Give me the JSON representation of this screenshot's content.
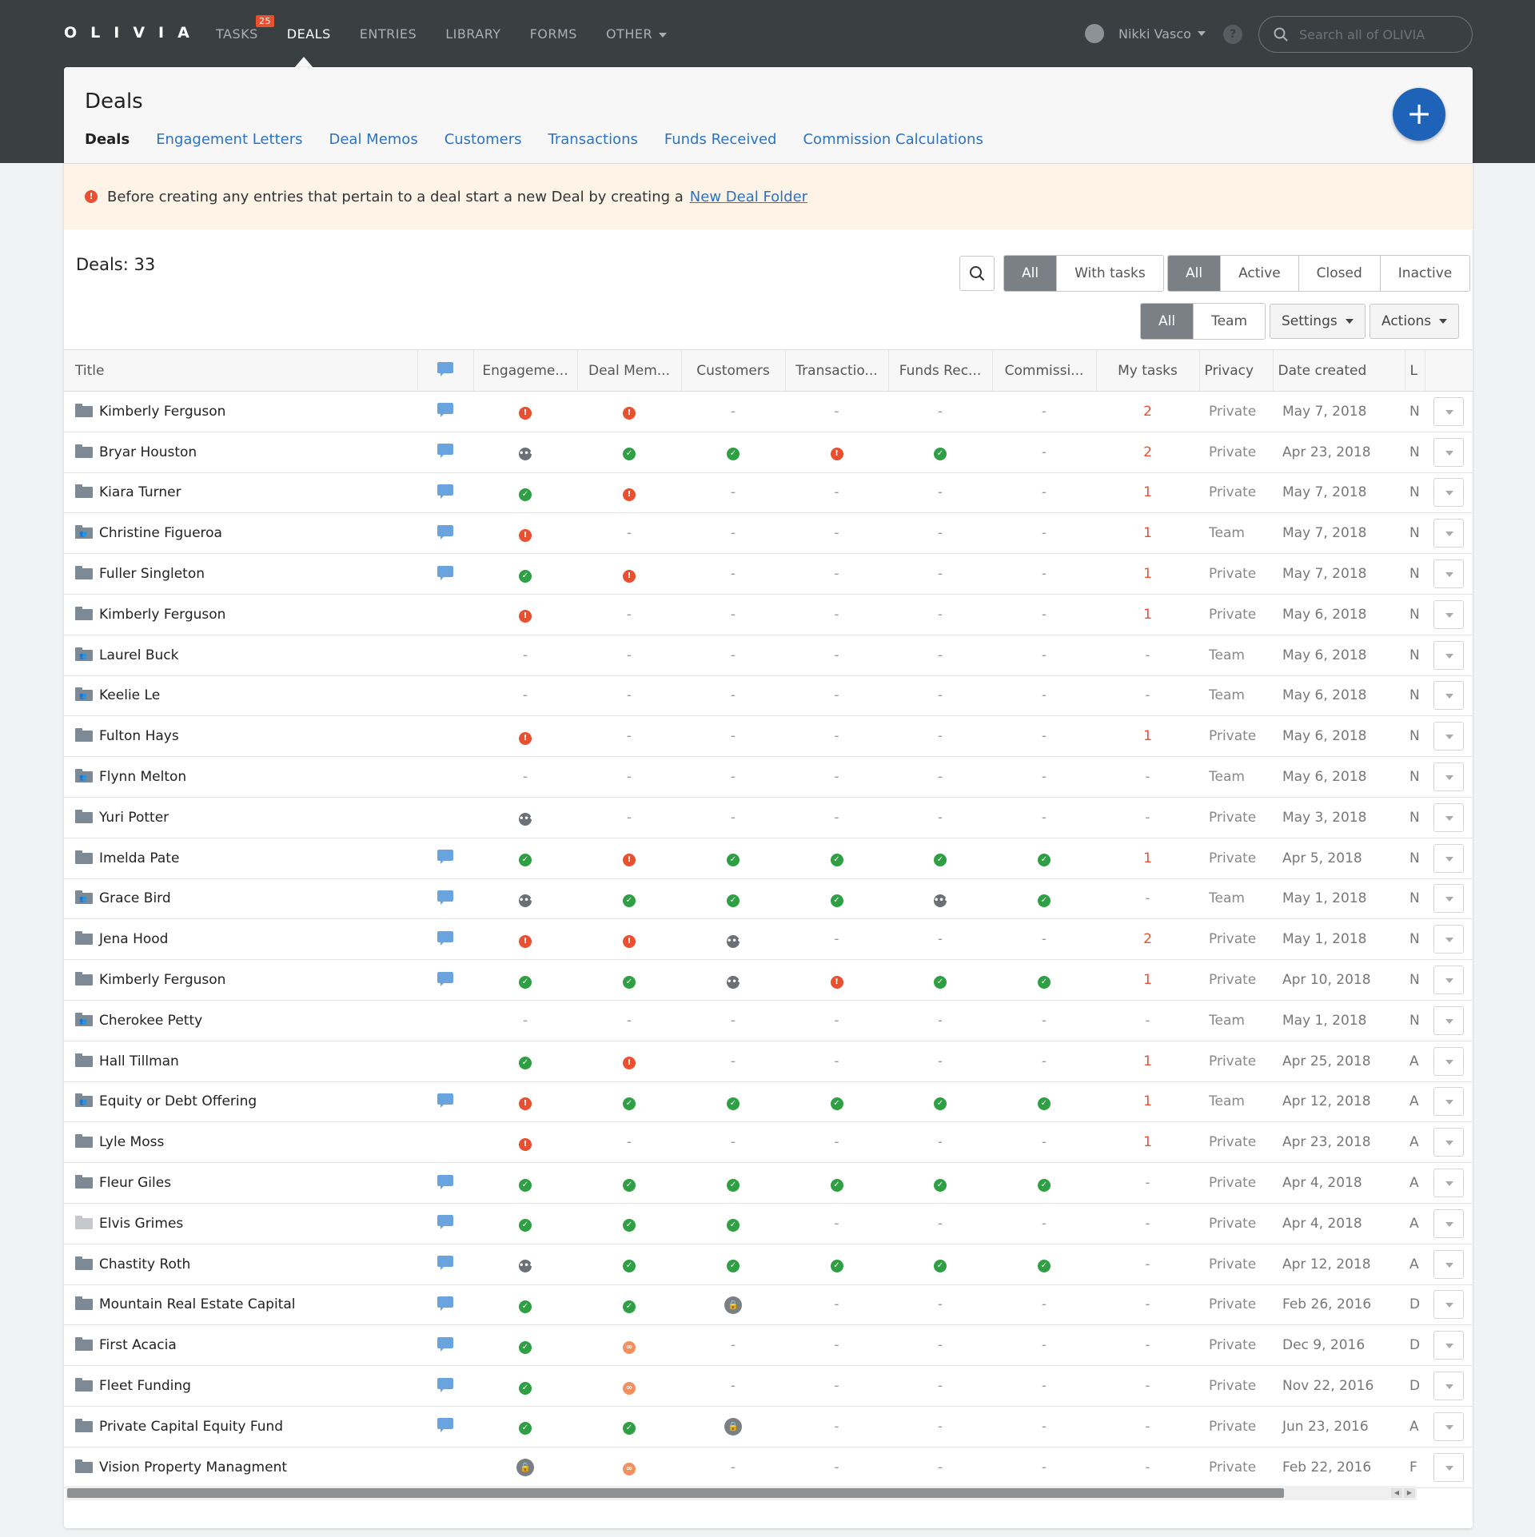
{
  "app": {
    "logo": "OLIVIA",
    "nav": [
      {
        "label": "TASKS",
        "badge": "25"
      },
      {
        "label": "DEALS",
        "active": true
      },
      {
        "label": "ENTRIES"
      },
      {
        "label": "LIBRARY"
      },
      {
        "label": "FORMS"
      },
      {
        "label": "OTHER"
      }
    ],
    "user_name": "Nikki Vasco",
    "help": "?",
    "search_placeholder": "Search all of OLIVIA"
  },
  "page": {
    "title": "Deals",
    "tabs": [
      "Deals",
      "Engagement Letters",
      "Deal Memos",
      "Customers",
      "Transactions",
      "Funds Received",
      "Commission Calculations"
    ],
    "add_button": "+"
  },
  "alert": {
    "text": "Before creating any entries that pertain to a deal start a new Deal by creating a",
    "link": "New Deal Folder"
  },
  "filters": {
    "count_label": "Deals: 33",
    "task_filter": [
      "All",
      "With tasks"
    ],
    "status_filter": [
      "All",
      "Active",
      "Closed",
      "Inactive"
    ],
    "scope_filter": [
      "All",
      "Team"
    ],
    "settings": "Settings",
    "actions": "Actions"
  },
  "table": {
    "columns": [
      "Title",
      "Engageme...",
      "Deal Mem...",
      "Customers",
      "Transactio...",
      "Funds Rec...",
      "Commissi...",
      "My tasks",
      "Privacy",
      "Date created",
      "L"
    ],
    "rows": [
      {
        "title": "Kimberly Ferguson",
        "folder": "private",
        "comment": true,
        "s": [
          "warn",
          "warn",
          "-",
          "-",
          "-",
          "-"
        ],
        "tasks": "2",
        "privacy": "Private",
        "date": "May 7, 2018",
        "last": "N"
      },
      {
        "title": "Bryar Houston",
        "folder": "private",
        "comment": true,
        "s": [
          "pend",
          "ok",
          "ok",
          "warn",
          "ok",
          "-"
        ],
        "tasks": "2",
        "privacy": "Private",
        "date": "Apr 23, 2018",
        "last": "N"
      },
      {
        "title": "Kiara Turner",
        "folder": "private",
        "comment": true,
        "s": [
          "ok",
          "warn",
          "-",
          "-",
          "-",
          "-"
        ],
        "tasks": "1",
        "privacy": "Private",
        "date": "May 7, 2018",
        "last": "N"
      },
      {
        "title": "Christine Figueroa",
        "folder": "team",
        "comment": true,
        "s": [
          "warn",
          "-",
          "-",
          "-",
          "-",
          "-"
        ],
        "tasks": "1",
        "privacy": "Team",
        "date": "May 7, 2018",
        "last": "N"
      },
      {
        "title": "Fuller Singleton",
        "folder": "private",
        "comment": true,
        "s": [
          "ok",
          "warn",
          "-",
          "-",
          "-",
          "-"
        ],
        "tasks": "1",
        "privacy": "Private",
        "date": "May 7, 2018",
        "last": "N"
      },
      {
        "title": "Kimberly Ferguson",
        "folder": "private",
        "comment": false,
        "s": [
          "warn",
          "-",
          "-",
          "-",
          "-",
          "-"
        ],
        "tasks": "1",
        "privacy": "Private",
        "date": "May 6, 2018",
        "last": "N"
      },
      {
        "title": "Laurel Buck",
        "folder": "team",
        "comment": false,
        "s": [
          "-",
          "-",
          "-",
          "-",
          "-",
          "-"
        ],
        "tasks": "-",
        "privacy": "Team",
        "date": "May 6, 2018",
        "last": "N"
      },
      {
        "title": "Keelie Le",
        "folder": "team",
        "comment": false,
        "s": [
          "-",
          "-",
          "-",
          "-",
          "-",
          "-"
        ],
        "tasks": "-",
        "privacy": "Team",
        "date": "May 6, 2018",
        "last": "N"
      },
      {
        "title": "Fulton Hays",
        "folder": "private",
        "comment": false,
        "s": [
          "warn",
          "-",
          "-",
          "-",
          "-",
          "-"
        ],
        "tasks": "1",
        "privacy": "Private",
        "date": "May 6, 2018",
        "last": "N"
      },
      {
        "title": "Flynn Melton",
        "folder": "team",
        "comment": false,
        "s": [
          "-",
          "-",
          "-",
          "-",
          "-",
          "-"
        ],
        "tasks": "-",
        "privacy": "Team",
        "date": "May 6, 2018",
        "last": "N"
      },
      {
        "title": "Yuri Potter",
        "folder": "private",
        "comment": false,
        "s": [
          "pend",
          "-",
          "-",
          "-",
          "-",
          "-"
        ],
        "tasks": "-",
        "privacy": "Private",
        "date": "May 3, 2018",
        "last": "N"
      },
      {
        "title": "Imelda Pate",
        "folder": "private",
        "comment": true,
        "s": [
          "ok",
          "warn",
          "ok",
          "ok",
          "ok",
          "ok"
        ],
        "tasks": "1",
        "privacy": "Private",
        "date": "Apr 5, 2018",
        "last": "N"
      },
      {
        "title": "Grace Bird",
        "folder": "team",
        "comment": true,
        "s": [
          "pend",
          "ok",
          "ok",
          "ok",
          "pend",
          "ok"
        ],
        "tasks": "-",
        "privacy": "Team",
        "date": "May 1, 2018",
        "last": "N"
      },
      {
        "title": "Jena Hood",
        "folder": "private",
        "comment": true,
        "s": [
          "warn",
          "warn",
          "pend",
          "-",
          "-",
          "-"
        ],
        "tasks": "2",
        "privacy": "Private",
        "date": "May 1, 2018",
        "last": "N"
      },
      {
        "title": "Kimberly Ferguson",
        "folder": "private",
        "comment": true,
        "s": [
          "ok",
          "ok",
          "pend",
          "warn",
          "ok",
          "ok"
        ],
        "tasks": "1",
        "privacy": "Private",
        "date": "Apr 10, 2018",
        "last": "N"
      },
      {
        "title": "Cherokee Petty",
        "folder": "team",
        "comment": false,
        "s": [
          "-",
          "-",
          "-",
          "-",
          "-",
          "-"
        ],
        "tasks": "-",
        "privacy": "Team",
        "date": "May 1, 2018",
        "last": "N"
      },
      {
        "title": "Hall Tillman",
        "folder": "private",
        "comment": false,
        "s": [
          "ok",
          "warn",
          "-",
          "-",
          "-",
          "-"
        ],
        "tasks": "1",
        "privacy": "Private",
        "date": "Apr 25, 2018",
        "last": "A"
      },
      {
        "title": "Equity or Debt Offering",
        "folder": "team",
        "comment": true,
        "s": [
          "warn",
          "ok",
          "ok",
          "ok",
          "ok",
          "ok"
        ],
        "tasks": "1",
        "privacy": "Team",
        "date": "Apr 12, 2018",
        "last": "A"
      },
      {
        "title": "Lyle Moss",
        "folder": "private",
        "comment": false,
        "s": [
          "warn",
          "-",
          "-",
          "-",
          "-",
          "-"
        ],
        "tasks": "1",
        "privacy": "Private",
        "date": "Apr 23, 2018",
        "last": "A"
      },
      {
        "title": "Fleur Giles",
        "folder": "private",
        "comment": true,
        "s": [
          "ok",
          "ok",
          "ok",
          "ok",
          "ok",
          "ok"
        ],
        "tasks": "-",
        "privacy": "Private",
        "date": "Apr 4, 2018",
        "last": "A"
      },
      {
        "title": "Elvis Grimes",
        "folder": "light",
        "comment": true,
        "s": [
          "ok",
          "ok",
          "ok",
          "-",
          "-",
          "-"
        ],
        "tasks": "-",
        "privacy": "Private",
        "date": "Apr 4, 2018",
        "last": "A"
      },
      {
        "title": "Chastity Roth",
        "folder": "private",
        "comment": true,
        "s": [
          "pend",
          "ok",
          "ok",
          "ok",
          "ok",
          "ok"
        ],
        "tasks": "-",
        "privacy": "Private",
        "date": "Apr 12, 2018",
        "last": "A"
      },
      {
        "title": "Mountain Real Estate Capital",
        "folder": "private",
        "comment": true,
        "s": [
          "ok",
          "ok",
          "lock",
          "-",
          "-",
          "-"
        ],
        "tasks": "-",
        "privacy": "Private",
        "date": "Feb 26, 2016",
        "last": "D"
      },
      {
        "title": "First Acacia",
        "folder": "private",
        "comment": true,
        "s": [
          "ok",
          "link",
          "-",
          "-",
          "-",
          "-"
        ],
        "tasks": "-",
        "privacy": "Private",
        "date": "Dec 9, 2016",
        "last": "D"
      },
      {
        "title": "Fleet Funding",
        "folder": "private",
        "comment": true,
        "s": [
          "ok",
          "link",
          "-",
          "-",
          "-",
          "-"
        ],
        "tasks": "-",
        "privacy": "Private",
        "date": "Nov 22, 2016",
        "last": "D"
      },
      {
        "title": "Private Capital Equity Fund",
        "folder": "private",
        "comment": true,
        "s": [
          "ok",
          "ok",
          "lock",
          "-",
          "-",
          "-"
        ],
        "tasks": "-",
        "privacy": "Private",
        "date": "Jun 23, 2016",
        "last": "A"
      },
      {
        "title": "Vision Property Managment",
        "folder": "private",
        "comment": false,
        "s": [
          "lock",
          "link",
          "-",
          "-",
          "-",
          "-"
        ],
        "tasks": "-",
        "privacy": "Private",
        "date": "Feb 22, 2016",
        "last": "F"
      }
    ]
  },
  "colors": {
    "topbar": "#3a3f42",
    "accent": "#1f63b9",
    "ok": "#2ea043",
    "warn": "#e8502f",
    "link": "#2a73c5"
  }
}
